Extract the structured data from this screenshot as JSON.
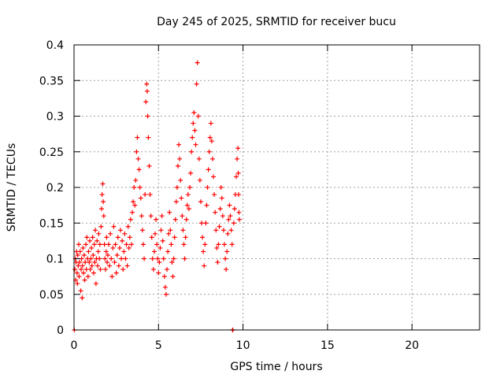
{
  "chart_data": {
    "type": "scatter",
    "title": "Day 245 of 2025, SRMTID for receiver bucu",
    "xlabel": "GPS time / hours",
    "ylabel": "SRMTID / TECUs",
    "xlim": [
      0,
      24
    ],
    "ylim": [
      0,
      0.4
    ],
    "xticks": [
      0,
      5,
      10,
      15,
      20
    ],
    "xtick_labels": [
      "0",
      "5",
      "10",
      "15",
      "20"
    ],
    "yticks": [
      0,
      0.05,
      0.1,
      0.15,
      0.2,
      0.25,
      0.3,
      0.35,
      0.4
    ],
    "ytick_labels": [
      "0",
      "0.05",
      "0.1",
      "0.15",
      "0.2",
      "0.25",
      "0.3",
      "0.35",
      "0.4"
    ],
    "grid": true,
    "marker": "plus",
    "marker_color": "#ff0000",
    "series": [
      {
        "name": "SRMTID",
        "points": [
          [
            0.02,
            0.0
          ],
          [
            0.05,
            0.085
          ],
          [
            0.08,
            0.1
          ],
          [
            0.1,
            0.07
          ],
          [
            0.12,
            0.095
          ],
          [
            0.15,
            0.11
          ],
          [
            0.18,
            0.08
          ],
          [
            0.2,
            0.065
          ],
          [
            0.22,
            0.105
          ],
          [
            0.25,
            0.09
          ],
          [
            0.28,
            0.12
          ],
          [
            0.3,
            0.075
          ],
          [
            0.33,
            0.095
          ],
          [
            0.36,
            0.11
          ],
          [
            0.4,
            0.055
          ],
          [
            0.42,
            0.085
          ],
          [
            0.45,
            0.1
          ],
          [
            0.48,
            0.045
          ],
          [
            0.5,
            0.09
          ],
          [
            0.53,
            0.115
          ],
          [
            0.56,
            0.08
          ],
          [
            0.6,
            0.105
          ],
          [
            0.63,
            0.07
          ],
          [
            0.66,
            0.095
          ],
          [
            0.7,
            0.12
          ],
          [
            0.73,
            0.085
          ],
          [
            0.76,
            0.13
          ],
          [
            0.8,
            0.1
          ],
          [
            0.83,
            0.075
          ],
          [
            0.86,
            0.11
          ],
          [
            0.9,
            0.095
          ],
          [
            0.93,
            0.125
          ],
          [
            0.96,
            0.085
          ],
          [
            1.0,
            0.1
          ],
          [
            1.03,
            0.115
          ],
          [
            1.06,
            0.09
          ],
          [
            1.1,
            0.13
          ],
          [
            1.13,
            0.105
          ],
          [
            1.16,
            0.08
          ],
          [
            1.2,
            0.12
          ],
          [
            1.23,
            0.095
          ],
          [
            1.26,
            0.14
          ],
          [
            1.3,
            0.065
          ],
          [
            1.33,
            0.1
          ],
          [
            1.36,
            0.125
          ],
          [
            1.4,
            0.09
          ],
          [
            1.43,
            0.11
          ],
          [
            1.46,
            0.135
          ],
          [
            1.5,
            0.1
          ],
          [
            1.53,
            0.12
          ],
          [
            1.56,
            0.085
          ],
          [
            1.6,
            0.145
          ],
          [
            1.63,
            0.17
          ],
          [
            1.66,
            0.19
          ],
          [
            1.7,
            0.205
          ],
          [
            1.73,
            0.18
          ],
          [
            1.76,
            0.16
          ],
          [
            1.8,
            0.12
          ],
          [
            1.83,
            0.1
          ],
          [
            1.86,
            0.085
          ],
          [
            1.9,
            0.11
          ],
          [
            1.93,
            0.13
          ],
          [
            1.96,
            0.095
          ],
          [
            2.0,
            0.105
          ],
          [
            2.05,
            0.12
          ],
          [
            2.1,
            0.09
          ],
          [
            2.15,
            0.135
          ],
          [
            2.2,
            0.1
          ],
          [
            2.25,
            0.075
          ],
          [
            2.3,
            0.115
          ],
          [
            2.35,
            0.145
          ],
          [
            2.4,
            0.095
          ],
          [
            2.45,
            0.12
          ],
          [
            2.5,
            0.08
          ],
          [
            2.55,
            0.105
          ],
          [
            2.6,
            0.13
          ],
          [
            2.65,
            0.09
          ],
          [
            2.7,
            0.115
          ],
          [
            2.75,
            0.14
          ],
          [
            2.8,
            0.1
          ],
          [
            2.85,
            0.125
          ],
          [
            2.9,
            0.085
          ],
          [
            2.95,
            0.11
          ],
          [
            3.0,
            0.135
          ],
          [
            3.05,
            0.1
          ],
          [
            3.1,
            0.12
          ],
          [
            3.15,
            0.09
          ],
          [
            3.2,
            0.145
          ],
          [
            3.25,
            0.115
          ],
          [
            3.3,
            0.13
          ],
          [
            3.35,
            0.155
          ],
          [
            3.4,
            0.12
          ],
          [
            3.45,
            0.165
          ],
          [
            3.5,
            0.18
          ],
          [
            3.55,
            0.2
          ],
          [
            3.6,
            0.175
          ],
          [
            3.65,
            0.21
          ],
          [
            3.7,
            0.25
          ],
          [
            3.75,
            0.27
          ],
          [
            3.8,
            0.24
          ],
          [
            3.85,
            0.225
          ],
          [
            3.9,
            0.2
          ],
          [
            3.95,
            0.185
          ],
          [
            4.0,
            0.16
          ],
          [
            4.05,
            0.14
          ],
          [
            4.1,
            0.12
          ],
          [
            4.15,
            0.1
          ],
          [
            4.2,
            0.19
          ],
          [
            4.25,
            0.32
          ],
          [
            4.3,
            0.345
          ],
          [
            4.33,
            0.335
          ],
          [
            4.36,
            0.3
          ],
          [
            4.4,
            0.27
          ],
          [
            4.45,
            0.23
          ],
          [
            4.5,
            0.19
          ],
          [
            4.55,
            0.16
          ],
          [
            4.6,
            0.13
          ],
          [
            4.65,
            0.1
          ],
          [
            4.7,
            0.085
          ],
          [
            4.75,
            0.11
          ],
          [
            4.8,
            0.135
          ],
          [
            4.85,
            0.155
          ],
          [
            4.9,
            0.12
          ],
          [
            4.95,
            0.1
          ],
          [
            5.0,
            0.08
          ],
          [
            5.05,
            0.095
          ],
          [
            5.1,
            0.115
          ],
          [
            5.15,
            0.14
          ],
          [
            5.2,
            0.16
          ],
          [
            5.25,
            0.125
          ],
          [
            5.3,
            0.1
          ],
          [
            5.35,
            0.075
          ],
          [
            5.4,
            0.06
          ],
          [
            5.45,
            0.05
          ],
          [
            5.5,
            0.085
          ],
          [
            5.55,
            0.11
          ],
          [
            5.6,
            0.135
          ],
          [
            5.65,
            0.165
          ],
          [
            5.7,
            0.14
          ],
          [
            5.75,
            0.12
          ],
          [
            5.8,
            0.095
          ],
          [
            5.85,
            0.075
          ],
          [
            5.9,
            0.1
          ],
          [
            5.95,
            0.13
          ],
          [
            6.0,
            0.155
          ],
          [
            6.05,
            0.18
          ],
          [
            6.1,
            0.2
          ],
          [
            6.15,
            0.23
          ],
          [
            6.2,
            0.26
          ],
          [
            6.25,
            0.24
          ],
          [
            6.3,
            0.21
          ],
          [
            6.35,
            0.185
          ],
          [
            6.4,
            0.16
          ],
          [
            6.45,
            0.14
          ],
          [
            6.5,
            0.12
          ],
          [
            6.55,
            0.1
          ],
          [
            6.6,
            0.13
          ],
          [
            6.65,
            0.155
          ],
          [
            6.7,
            0.175
          ],
          [
            6.75,
            0.19
          ],
          [
            6.8,
            0.17
          ],
          [
            6.85,
            0.2
          ],
          [
            6.9,
            0.22
          ],
          [
            6.95,
            0.25
          ],
          [
            7.0,
            0.27
          ],
          [
            7.05,
            0.29
          ],
          [
            7.1,
            0.305
          ],
          [
            7.15,
            0.28
          ],
          [
            7.2,
            0.26
          ],
          [
            7.25,
            0.345
          ],
          [
            7.3,
            0.375
          ],
          [
            7.35,
            0.3
          ],
          [
            7.4,
            0.24
          ],
          [
            7.45,
            0.21
          ],
          [
            7.5,
            0.18
          ],
          [
            7.55,
            0.15
          ],
          [
            7.6,
            0.13
          ],
          [
            7.65,
            0.11
          ],
          [
            7.7,
            0.09
          ],
          [
            7.75,
            0.12
          ],
          [
            7.8,
            0.15
          ],
          [
            7.85,
            0.175
          ],
          [
            7.9,
            0.2
          ],
          [
            7.95,
            0.225
          ],
          [
            8.0,
            0.25
          ],
          [
            8.05,
            0.27
          ],
          [
            8.1,
            0.29
          ],
          [
            8.15,
            0.265
          ],
          [
            8.2,
            0.24
          ],
          [
            8.25,
            0.215
          ],
          [
            8.3,
            0.19
          ],
          [
            8.35,
            0.165
          ],
          [
            8.4,
            0.14
          ],
          [
            8.45,
            0.115
          ],
          [
            8.5,
            0.095
          ],
          [
            8.55,
            0.12
          ],
          [
            8.6,
            0.145
          ],
          [
            8.65,
            0.17
          ],
          [
            8.7,
            0.2
          ],
          [
            8.75,
            0.185
          ],
          [
            8.8,
            0.16
          ],
          [
            8.85,
            0.14
          ],
          [
            8.9,
            0.12
          ],
          [
            8.95,
            0.1
          ],
          [
            9.0,
            0.085
          ],
          [
            9.05,
            0.11
          ],
          [
            9.1,
            0.135
          ],
          [
            9.15,
            0.155
          ],
          [
            9.2,
            0.175
          ],
          [
            9.25,
            0.16
          ],
          [
            9.3,
            0.14
          ],
          [
            9.35,
            0.12
          ],
          [
            9.38,
            0.0
          ],
          [
            9.4,
            0.0
          ],
          [
            9.45,
            0.15
          ],
          [
            9.5,
            0.17
          ],
          [
            9.55,
            0.19
          ],
          [
            9.6,
            0.215
          ],
          [
            9.65,
            0.24
          ],
          [
            9.7,
            0.255
          ],
          [
            9.72,
            0.22
          ],
          [
            9.74,
            0.19
          ],
          [
            9.76,
            0.165
          ],
          [
            9.78,
            0.155
          ]
        ]
      }
    ]
  }
}
